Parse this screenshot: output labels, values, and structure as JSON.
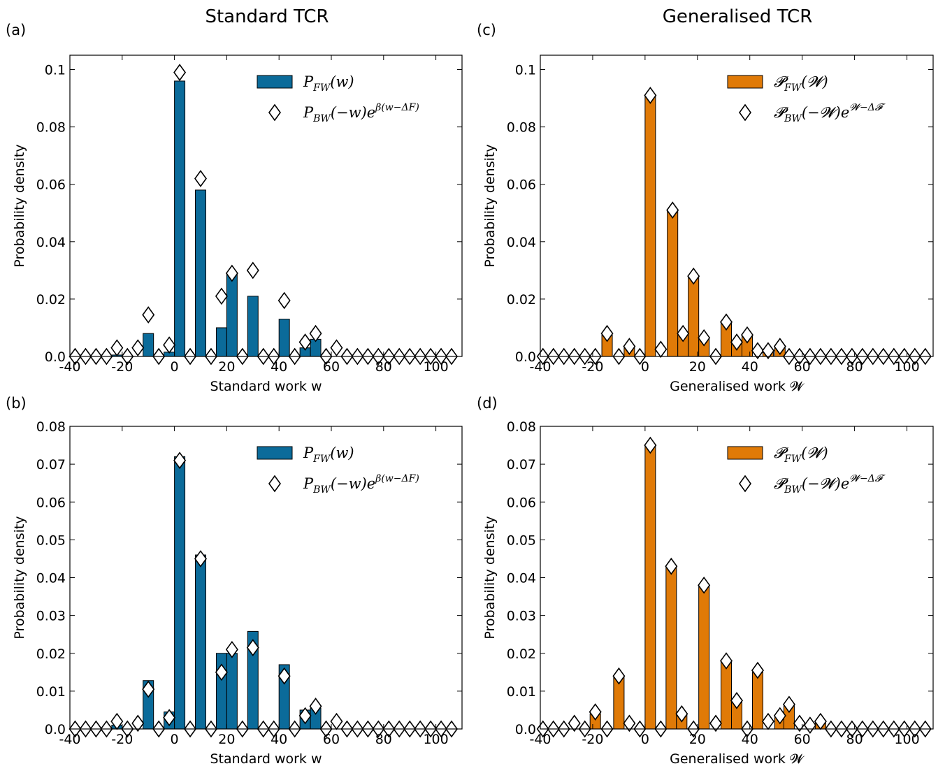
{
  "titles": {
    "left": "Standard TCR",
    "right": "Generalised TCR"
  },
  "colors": {
    "blue": "#0b6b9a",
    "orange": "#e07a07"
  },
  "chart_data": [
    {
      "id": "a",
      "panel_label": "(a)",
      "type": "bar",
      "color": "#0b6b9a",
      "xlabel": "Standard work w",
      "ylabel": "Probability density",
      "xlim": [
        -40,
        110
      ],
      "ylim": [
        0,
        0.105
      ],
      "xticks": [
        -40,
        -20,
        0,
        20,
        40,
        60,
        80,
        100
      ],
      "yticks": [
        0.0,
        0.02,
        0.04,
        0.06,
        0.08,
        0.1
      ],
      "ytick_labels": [
        "0.0",
        "0.02",
        "0.04",
        "0.06",
        "0.08",
        "0.1"
      ],
      "bar_width": 4,
      "bars": {
        "name": "P_FW(w)",
        "x": [
          -22,
          -10,
          -2,
          2,
          10,
          18,
          22,
          30,
          42,
          50,
          54
        ],
        "y": [
          0.0005,
          0.008,
          0.0015,
          0.096,
          0.058,
          0.01,
          0.029,
          0.021,
          0.013,
          0.003,
          0.006
        ]
      },
      "markers": {
        "name": "P_BW(-w)e^{β(w-ΔF)}",
        "x": [
          -38,
          -34,
          -30,
          -26,
          -22,
          -18,
          -14,
          -10,
          -6,
          -2,
          2,
          6,
          10,
          14,
          18,
          22,
          26,
          30,
          34,
          38,
          42,
          46,
          50,
          54,
          58,
          62,
          66,
          70,
          74,
          78,
          82,
          86,
          90,
          94,
          98,
          102,
          106
        ],
        "y": [
          0,
          0,
          0,
          0,
          0.003,
          0,
          0.003,
          0.0145,
          0,
          0.004,
          0.099,
          0,
          0.062,
          0,
          0.021,
          0.029,
          0,
          0.03,
          0,
          0,
          0.0195,
          0,
          0.005,
          0.008,
          0,
          0.003,
          0,
          0,
          0,
          0,
          0,
          0,
          0,
          0,
          0,
          0,
          0
        ]
      }
    },
    {
      "id": "b",
      "panel_label": "(b)",
      "type": "bar",
      "color": "#0b6b9a",
      "xlabel": "Standard work w",
      "ylabel": "Probability density",
      "xlim": [
        -40,
        110
      ],
      "ylim": [
        0,
        0.08
      ],
      "xticks": [
        -40,
        -20,
        0,
        20,
        40,
        60,
        80,
        100
      ],
      "yticks": [
        0.0,
        0.01,
        0.02,
        0.03,
        0.04,
        0.05,
        0.06,
        0.07,
        0.08
      ],
      "ytick_labels": [
        "0.0",
        "0.01",
        "0.02",
        "0.03",
        "0.04",
        "0.05",
        "0.06",
        "0.07",
        "0.08"
      ],
      "bar_width": 4,
      "bars": {
        "name": "P_FW(w)",
        "x": [
          -22,
          -10,
          -2,
          2,
          10,
          18,
          22,
          30,
          42,
          50,
          54
        ],
        "y": [
          0.001,
          0.0128,
          0.0045,
          0.072,
          0.046,
          0.02,
          0.02,
          0.0258,
          0.017,
          0.005,
          0.0055
        ]
      },
      "markers": {
        "name": "P_BW(-w)e^{β(w-ΔF)}",
        "x": [
          -38,
          -34,
          -30,
          -26,
          -22,
          -18,
          -14,
          -10,
          -6,
          -2,
          2,
          6,
          10,
          14,
          18,
          22,
          26,
          30,
          34,
          38,
          42,
          46,
          50,
          54,
          58,
          62,
          66,
          70,
          74,
          78,
          82,
          86,
          90,
          94,
          98,
          102,
          106
        ],
        "y": [
          0,
          0,
          0,
          0,
          0.002,
          0,
          0.0015,
          0.0105,
          0,
          0.003,
          0.071,
          0,
          0.045,
          0,
          0.015,
          0.021,
          0,
          0.0215,
          0,
          0,
          0.014,
          0,
          0.0035,
          0.006,
          0,
          0.002,
          0,
          0,
          0,
          0,
          0,
          0,
          0,
          0,
          0,
          0,
          0
        ]
      }
    },
    {
      "id": "c",
      "panel_label": "(c)",
      "type": "bar",
      "color": "#e07a07",
      "xlabel": "Generalised work 𝓦",
      "ylabel": "Probability density",
      "xlim": [
        -40,
        110
      ],
      "ylim": [
        0,
        0.105
      ],
      "xticks": [
        -40,
        -20,
        0,
        20,
        40,
        60,
        80,
        100
      ],
      "yticks": [
        0.0,
        0.02,
        0.04,
        0.06,
        0.08,
        0.1
      ],
      "ytick_labels": [
        "0.0",
        "0.02",
        "0.04",
        "0.06",
        "0.08",
        "0.1"
      ],
      "bar_width": 4,
      "bars": {
        "name": "𝓟_FW(𝓦)",
        "x": [
          -14.5,
          -6,
          2,
          10.5,
          14.5,
          18.5,
          22.5,
          31,
          35,
          39,
          47,
          51.5
        ],
        "y": [
          0.0075,
          0.003,
          0.091,
          0.051,
          0.008,
          0.028,
          0.006,
          0.012,
          0.0045,
          0.007,
          0.002,
          0.003
        ]
      },
      "markers": {
        "name": "𝓟_BW(−𝓦)e^{𝓦−Δ𝓕}",
        "x": [
          -39,
          -35,
          -31,
          -27,
          -23,
          -19,
          -14.5,
          -10,
          -6,
          -2,
          2,
          6,
          10.5,
          14.5,
          18.5,
          22.5,
          27,
          31,
          35,
          39,
          43,
          47,
          51.5,
          55,
          59,
          63,
          67,
          71,
          75,
          79,
          83,
          87,
          91,
          95,
          99,
          103,
          107
        ],
        "y": [
          0,
          0,
          0,
          0,
          0,
          0,
          0.008,
          0,
          0.0035,
          0,
          0.091,
          0.0025,
          0.051,
          0.008,
          0.028,
          0.0065,
          0,
          0.012,
          0.005,
          0.0075,
          0.002,
          0.002,
          0.0035,
          0,
          0,
          0,
          0,
          0,
          0,
          0,
          0,
          0,
          0,
          0,
          0,
          0,
          0
        ]
      }
    },
    {
      "id": "d",
      "panel_label": "(d)",
      "type": "bar",
      "color": "#e07a07",
      "xlabel": "Generalised work 𝓦",
      "ylabel": "Probability density",
      "xlim": [
        -40,
        110
      ],
      "ylim": [
        0,
        0.08
      ],
      "xticks": [
        -40,
        -20,
        0,
        20,
        40,
        60,
        80,
        100
      ],
      "yticks": [
        0.0,
        0.01,
        0.02,
        0.03,
        0.04,
        0.05,
        0.06,
        0.07,
        0.08
      ],
      "ytick_labels": [
        "0.0",
        "0.01",
        "0.02",
        "0.03",
        "0.04",
        "0.05",
        "0.06",
        "0.07",
        "0.08"
      ],
      "bar_width": 4,
      "bars": {
        "name": "𝓟_FW(𝓦)",
        "x": [
          -19,
          -10,
          2,
          10,
          14,
          22.5,
          31,
          35,
          43,
          51.5,
          55,
          67
        ],
        "y": [
          0.004,
          0.014,
          0.075,
          0.043,
          0.004,
          0.038,
          0.018,
          0.007,
          0.015,
          0.003,
          0.0065,
          0.002
        ]
      },
      "markers": {
        "name": "𝓟_BW(−𝓦)e^{𝓦−Δ𝓕}",
        "x": [
          -39,
          -35,
          -31,
          -27,
          -23,
          -19,
          -14.5,
          -10,
          -6,
          -2,
          2,
          6,
          10,
          14,
          18.5,
          22.5,
          27,
          31,
          35,
          39,
          43,
          47,
          51.5,
          55,
          59,
          63,
          67,
          71,
          75,
          79,
          83,
          87,
          91,
          95,
          99,
          103,
          107
        ],
        "y": [
          0,
          0,
          0,
          0.0015,
          0,
          0.0045,
          0,
          0.014,
          0.0015,
          0,
          0.075,
          0,
          0.043,
          0.004,
          0,
          0.038,
          0.0015,
          0.018,
          0.0075,
          0,
          0.0155,
          0.002,
          0.0035,
          0.0065,
          0.0015,
          0.001,
          0.002,
          0,
          0,
          0,
          0,
          0,
          0,
          0,
          0,
          0,
          0
        ]
      }
    }
  ]
}
